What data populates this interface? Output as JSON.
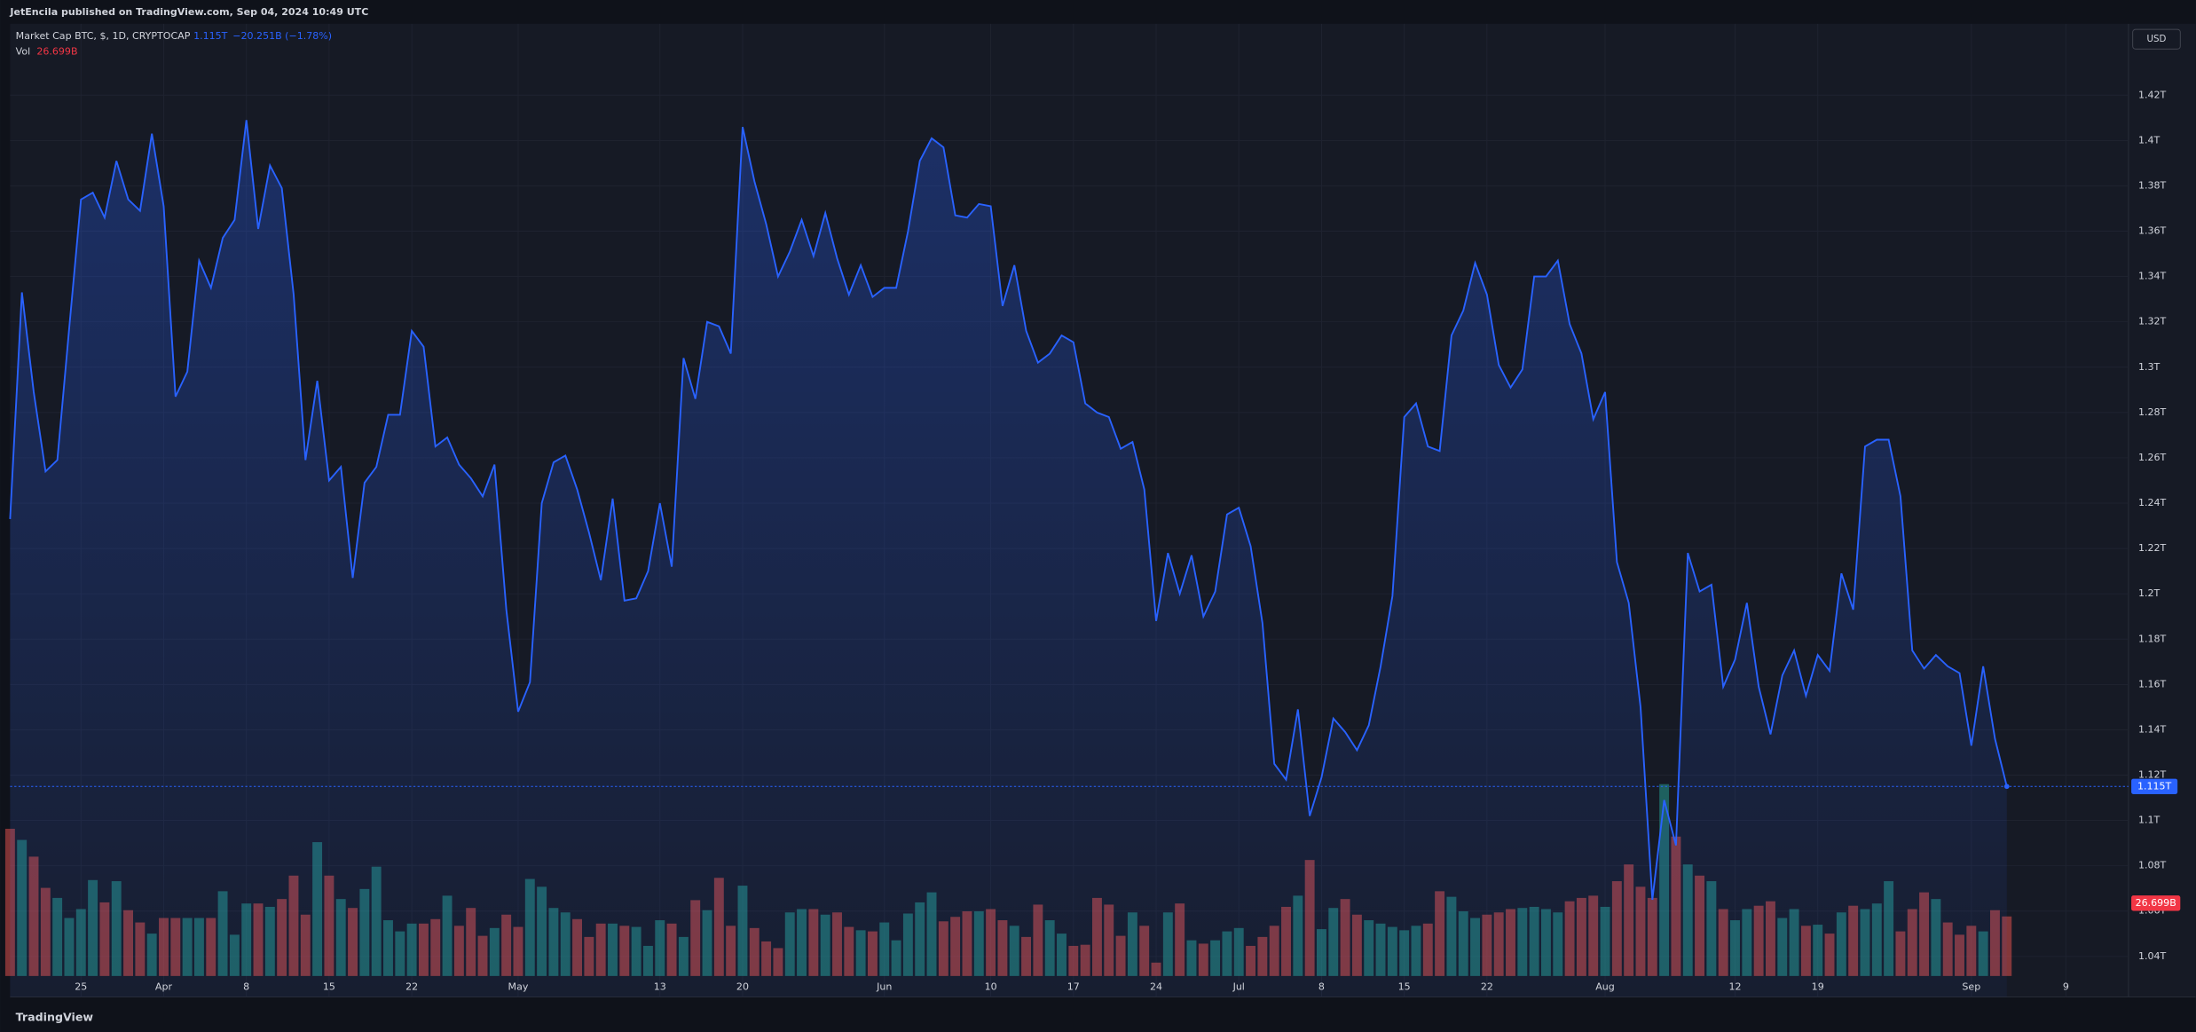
{
  "header": {
    "publisher": "JetEncila published on TradingView.com, Sep 04, 2024 10:49 UTC",
    "currency": "USD",
    "footer": "TradingView"
  },
  "chart_data": {
    "type": "area-volume",
    "series": [
      {
        "name": "Market Cap BTC, $, 1D, CRYPTOCAP",
        "color": "#2962ff",
        "price_label": "1.115T",
        "change_label": "−20.251B (−1.78%)",
        "values": [
          1.233,
          1.333,
          1.289,
          1.254,
          1.259,
          1.317,
          1.374,
          1.377,
          1.366,
          1.391,
          1.374,
          1.369,
          1.403,
          1.371,
          1.287,
          1.298,
          1.347,
          1.335,
          1.357,
          1.365,
          1.409,
          1.361,
          1.389,
          1.379,
          1.332,
          1.259,
          1.294,
          1.25,
          1.256,
          1.207,
          1.249,
          1.256,
          1.279,
          1.279,
          1.316,
          1.309,
          1.265,
          1.269,
          1.257,
          1.251,
          1.243,
          1.257,
          1.193,
          1.148,
          1.161,
          1.24,
          1.258,
          1.261,
          1.246,
          1.227,
          1.206,
          1.242,
          1.197,
          1.198,
          1.21,
          1.24,
          1.212,
          1.304,
          1.286,
          1.32,
          1.318,
          1.306,
          1.406,
          1.382,
          1.363,
          1.34,
          1.351,
          1.365,
          1.349,
          1.368,
          1.348,
          1.332,
          1.345,
          1.331,
          1.335,
          1.335,
          1.36,
          1.391,
          1.401,
          1.397,
          1.367,
          1.366,
          1.372,
          1.371,
          1.327,
          1.345,
          1.316,
          1.302,
          1.306,
          1.314,
          1.311,
          1.284,
          1.28,
          1.278,
          1.264,
          1.267,
          1.246,
          1.188,
          1.218,
          1.2,
          1.217,
          1.19,
          1.201,
          1.235,
          1.238,
          1.221,
          1.187,
          1.125,
          1.118,
          1.149,
          1.102,
          1.119,
          1.145,
          1.139,
          1.131,
          1.142,
          1.168,
          1.199,
          1.278,
          1.284,
          1.265,
          1.263,
          1.314,
          1.325,
          1.346,
          1.332,
          1.301,
          1.291,
          1.299,
          1.34,
          1.34,
          1.347,
          1.319,
          1.306,
          1.277,
          1.289,
          1.214,
          1.196,
          1.15,
          1.065,
          1.109,
          1.089,
          1.218,
          1.201,
          1.204,
          1.159,
          1.171,
          1.196,
          1.159,
          1.138,
          1.164,
          1.175,
          1.155,
          1.173,
          1.166,
          1.209,
          1.193,
          1.265,
          1.268,
          1.268,
          1.243,
          1.175,
          1.167,
          1.173,
          1.168,
          1.165,
          1.133,
          1.168,
          1.136,
          1.115
        ]
      },
      {
        "name": "Vol",
        "color": "#f23645",
        "up_color": "#26a69a",
        "down_color": "#ef5350",
        "value_label": "26.699B",
        "values": [
          66,
          61,
          53.5,
          39.5,
          35,
          26,
          30,
          43,
          33,
          42.5,
          29.5,
          24,
          19,
          26,
          26,
          26,
          26,
          26,
          38,
          18.5,
          32.5,
          32.5,
          31,
          34.5,
          45,
          27.5,
          60,
          45,
          34.5,
          30.5,
          39,
          49,
          25,
          20,
          23.5,
          23.5,
          25.5,
          36,
          22.5,
          30.5,
          18,
          21.5,
          27.5,
          22,
          43.5,
          40,
          30.5,
          28.5,
          25.5,
          17.5,
          23.5,
          23.5,
          22.5,
          22,
          13.5,
          25,
          23.5,
          17.5,
          34,
          29.5,
          44,
          22.5,
          40.5,
          21.5,
          15.5,
          12.5,
          28.5,
          30,
          30,
          27.5,
          28.5,
          22,
          20.5,
          20,
          24,
          16,
          28,
          33,
          37.5,
          24.5,
          26.5,
          29,
          29,
          30,
          25,
          22.5,
          17.5,
          32,
          25,
          19,
          13.5,
          14,
          35,
          32,
          18,
          28.5,
          22.5,
          6,
          28.5,
          32.5,
          16,
          14.5,
          16,
          20,
          21.5,
          13.5,
          17.5,
          22.5,
          31,
          36,
          52,
          21,
          30.5,
          34.5,
          27.5,
          25,
          23.5,
          22,
          20.5,
          22.5,
          23.5,
          38,
          35.5,
          29,
          26,
          27.5,
          28.5,
          30,
          30.5,
          31,
          30,
          28.5,
          33.5,
          35,
          36,
          31,
          42.5,
          50,
          40,
          35,
          86,
          62.5,
          50,
          45,
          42.5,
          30,
          25,
          30,
          31.5,
          33.5,
          26,
          30,
          22.5,
          23,
          19,
          28.5,
          31.5,
          30,
          32.5,
          42.5,
          20,
          30,
          37.5,
          34.5,
          24,
          18.5,
          22.5,
          20,
          29.5,
          26.699
        ]
      }
    ],
    "xlim": [
      0,
      179.3
    ],
    "xticks": [
      {
        "value": 6,
        "label": "25"
      },
      {
        "value": 13,
        "label": "Apr"
      },
      {
        "value": 20,
        "label": "8"
      },
      {
        "value": 27,
        "label": "15"
      },
      {
        "value": 34,
        "label": "22"
      },
      {
        "value": 43,
        "label": "May"
      },
      {
        "value": 55,
        "label": "13"
      },
      {
        "value": 62,
        "label": "20"
      },
      {
        "value": 74,
        "label": "Jun"
      },
      {
        "value": 83,
        "label": "10"
      },
      {
        "value": 90,
        "label": "17"
      },
      {
        "value": 97,
        "label": "24"
      },
      {
        "value": 104,
        "label": "Jul"
      },
      {
        "value": 111,
        "label": "8"
      },
      {
        "value": 118,
        "label": "15"
      },
      {
        "value": 125,
        "label": "22"
      },
      {
        "value": 135,
        "label": "Aug"
      },
      {
        "value": 146,
        "label": "12"
      },
      {
        "value": 153,
        "label": "19"
      },
      {
        "value": 166,
        "label": "Sep"
      },
      {
        "value": 174,
        "label": "9"
      }
    ],
    "ylim": [
      1.0221,
      1.4515
    ],
    "yticks": [
      {
        "value": 1.04,
        "label": "1.04T"
      },
      {
        "value": 1.06,
        "label": "1.06T"
      },
      {
        "value": 1.08,
        "label": "1.08T"
      },
      {
        "value": 1.1,
        "label": "1.1T"
      },
      {
        "value": 1.12,
        "label": "1.12T"
      },
      {
        "value": 1.14,
        "label": "1.14T"
      },
      {
        "value": 1.16,
        "label": "1.16T"
      },
      {
        "value": 1.18,
        "label": "1.18T"
      },
      {
        "value": 1.2,
        "label": "1.2T"
      },
      {
        "value": 1.22,
        "label": "1.22T"
      },
      {
        "value": 1.24,
        "label": "1.24T"
      },
      {
        "value": 1.26,
        "label": "1.26T"
      },
      {
        "value": 1.28,
        "label": "1.28T"
      },
      {
        "value": 1.3,
        "label": "1.3T"
      },
      {
        "value": 1.32,
        "label": "1.32T"
      },
      {
        "value": 1.34,
        "label": "1.34T"
      },
      {
        "value": 1.36,
        "label": "1.36T"
      },
      {
        "value": 1.38,
        "label": "1.38T"
      },
      {
        "value": 1.4,
        "label": "1.4T"
      },
      {
        "value": 1.42,
        "label": "1.42T"
      }
    ],
    "grid": true
  }
}
